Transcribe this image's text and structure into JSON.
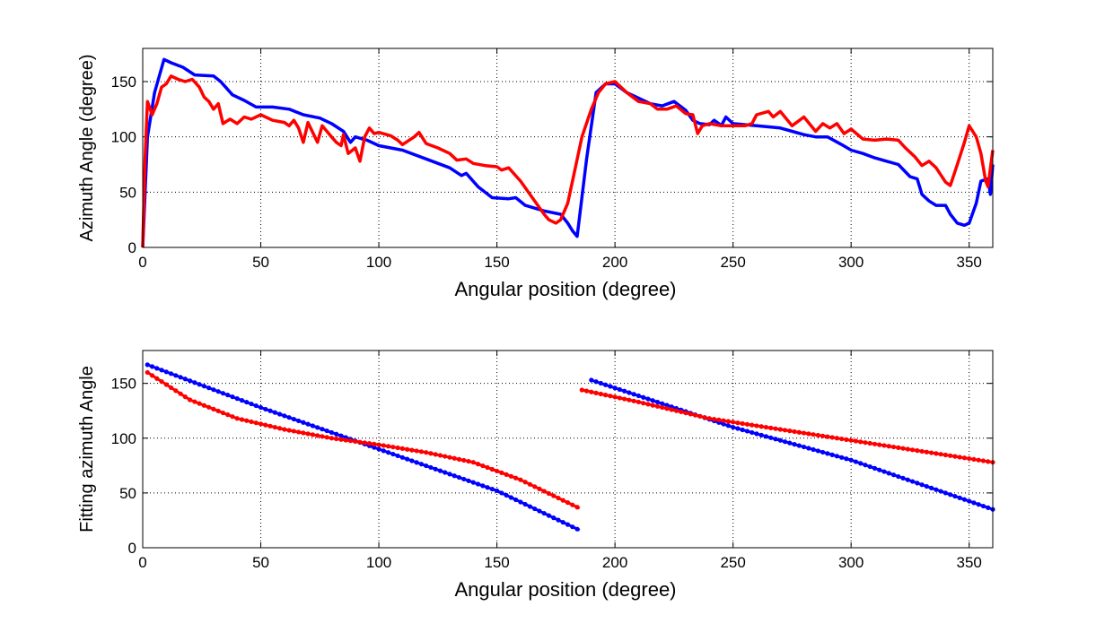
{
  "chart_data": [
    {
      "type": "line",
      "title": "",
      "xlabel": "Angular position (degree)",
      "ylabel": "Azimuth Angle (degree)",
      "xlim": [
        0,
        360
      ],
      "ylim": [
        0,
        180
      ],
      "xticks": [
        0,
        50,
        100,
        150,
        200,
        250,
        300,
        350
      ],
      "yticks": [
        0,
        50,
        100,
        150
      ],
      "grid": true,
      "series": [
        {
          "name": "blue",
          "color": "#0000ff",
          "marker": "none",
          "x": [
            0,
            2,
            5,
            9,
            12,
            17,
            22,
            30,
            33,
            38,
            43,
            48,
            55,
            62,
            68,
            75,
            80,
            85,
            88,
            90,
            95,
            100,
            110,
            120,
            130,
            135,
            137,
            142,
            148,
            155,
            158,
            162,
            170,
            177,
            180,
            182,
            184,
            188,
            192,
            196,
            200,
            205,
            210,
            215,
            220,
            225,
            230,
            233,
            236,
            240,
            242,
            244,
            245,
            247,
            250,
            260,
            270,
            280,
            285,
            290,
            296,
            300,
            305,
            310,
            315,
            320,
            325,
            328,
            330,
            333,
            336,
            340,
            342,
            345,
            348,
            350,
            353,
            355,
            358,
            359,
            360
          ],
          "y": [
            0,
            100,
            140,
            170,
            167,
            163,
            156,
            155,
            150,
            138,
            133,
            127,
            127,
            125,
            120,
            117,
            112,
            105,
            95,
            100,
            97,
            92,
            88,
            80,
            72,
            65,
            67,
            55,
            45,
            44,
            45,
            38,
            33,
            30,
            22,
            15,
            10,
            80,
            140,
            148,
            148,
            140,
            135,
            130,
            128,
            132,
            124,
            115,
            112,
            111,
            115,
            112,
            110,
            118,
            112,
            110,
            108,
            102,
            100,
            100,
            93,
            88,
            85,
            81,
            78,
            75,
            64,
            62,
            48,
            42,
            38,
            38,
            30,
            22,
            20,
            22,
            40,
            60,
            62,
            48,
            75
          ]
        },
        {
          "name": "red",
          "color": "#ff0000",
          "marker": "none",
          "x": [
            0,
            1,
            2,
            4,
            6,
            8,
            10,
            12,
            15,
            18,
            21,
            24,
            26,
            28,
            30,
            32,
            34,
            37,
            40,
            43,
            46,
            50,
            55,
            60,
            62,
            64,
            66,
            68,
            70,
            72,
            74,
            76,
            78,
            80,
            82,
            84,
            85,
            87,
            90,
            92,
            94,
            96,
            98,
            100,
            105,
            108,
            110,
            115,
            117,
            120,
            125,
            130,
            133,
            137,
            140,
            145,
            150,
            152,
            155,
            160,
            165,
            170,
            172,
            175,
            177,
            180,
            183,
            186,
            190,
            193,
            196,
            200,
            205,
            210,
            215,
            218,
            222,
            226,
            230,
            233,
            235,
            237,
            240,
            245,
            255,
            258,
            260,
            265,
            267,
            270,
            275,
            280,
            285,
            288,
            291,
            294,
            297,
            300,
            305,
            310,
            315,
            320,
            323,
            327,
            330,
            333,
            336,
            340,
            342,
            345,
            348,
            350,
            353,
            355,
            357,
            358,
            360
          ],
          "y": [
            0,
            80,
            132,
            120,
            130,
            145,
            148,
            155,
            152,
            150,
            152,
            145,
            136,
            132,
            125,
            130,
            112,
            116,
            112,
            118,
            116,
            120,
            115,
            113,
            110,
            115,
            108,
            95,
            113,
            104,
            95,
            110,
            105,
            100,
            95,
            92,
            102,
            85,
            90,
            78,
            100,
            108,
            103,
            104,
            101,
            97,
            93,
            100,
            104,
            94,
            90,
            85,
            79,
            80,
            76,
            74,
            73,
            70,
            72,
            60,
            45,
            30,
            25,
            22,
            25,
            40,
            70,
            100,
            125,
            140,
            148,
            150,
            140,
            132,
            130,
            125,
            125,
            128,
            121,
            120,
            103,
            110,
            112,
            110,
            110,
            112,
            120,
            123,
            118,
            123,
            110,
            118,
            105,
            112,
            108,
            112,
            103,
            107,
            98,
            97,
            98,
            97,
            90,
            82,
            74,
            78,
            72,
            59,
            56,
            75,
            95,
            110,
            100,
            85,
            60,
            55,
            88
          ]
        }
      ]
    },
    {
      "type": "line",
      "title": "",
      "xlabel": "Angular position (degree)",
      "ylabel": "Fitting azimuth Angle",
      "xlim": [
        0,
        360
      ],
      "ylim": [
        0,
        180
      ],
      "xticks": [
        0,
        50,
        100,
        150,
        200,
        250,
        300,
        350
      ],
      "yticks": [
        0,
        50,
        100,
        150
      ],
      "grid": true,
      "series": [
        {
          "name": "blue segment 1",
          "color": "#0000ff",
          "marker": "dot",
          "x": [
            2,
            50,
            100,
            150,
            185
          ],
          "y": [
            167,
            128,
            90,
            52,
            16
          ]
        },
        {
          "name": "blue segment 2",
          "color": "#0000ff",
          "marker": "dot",
          "x": [
            190,
            250,
            300,
            360
          ],
          "y": [
            153,
            110,
            80,
            35
          ]
        },
        {
          "name": "red segment 1",
          "color": "#ff0000",
          "marker": "dot",
          "x": [
            2,
            20,
            40,
            60,
            80,
            100,
            120,
            140,
            160,
            185
          ],
          "y": [
            160,
            135,
            118,
            108,
            100,
            94,
            87,
            78,
            62,
            36
          ]
        },
        {
          "name": "red segment 2",
          "color": "#ff0000",
          "marker": "dot",
          "x": [
            186,
            210,
            240,
            270,
            300,
            330,
            360
          ],
          "y": [
            144,
            133,
            118,
            108,
            98,
            88,
            78
          ]
        }
      ]
    }
  ]
}
